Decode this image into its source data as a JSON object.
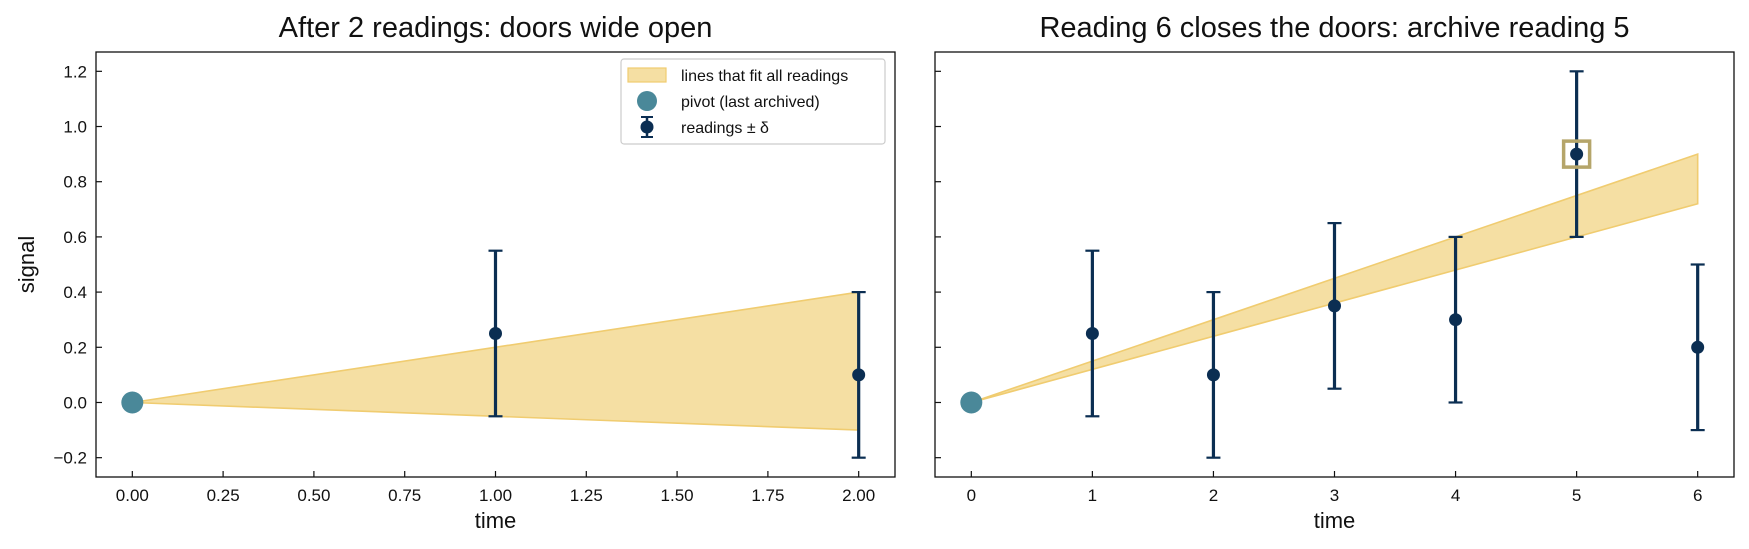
{
  "colors": {
    "band_fill": "#f5dfa3",
    "band_edge": "#f0cc70",
    "readings": "#0b2e52",
    "pivot": "#4a8899",
    "highlight": "#b5a56a",
    "axis": "#111111",
    "background": "#ffffff"
  },
  "chart_data": [
    {
      "type": "scatter",
      "title": "After 2 readings: doors wide open",
      "xlabel": "time",
      "ylabel": "signal",
      "xlim": [
        -0.1,
        2.1
      ],
      "ylim": [
        -0.27,
        1.27
      ],
      "xticks": [
        0.0,
        0.25,
        0.5,
        0.75,
        1.0,
        1.25,
        1.5,
        1.75,
        2.0
      ],
      "xtick_labels": [
        "0.00",
        "0.25",
        "0.50",
        "0.75",
        "1.00",
        "1.25",
        "1.50",
        "1.75",
        "2.00"
      ],
      "yticks": [
        -0.2,
        0.0,
        0.2,
        0.4,
        0.6,
        0.8,
        1.0,
        1.2
      ],
      "ytick_labels": [
        "−0.2",
        "0.0",
        "0.2",
        "0.4",
        "0.6",
        "0.8",
        "1.0",
        "1.2"
      ],
      "show_ytick_labels": true,
      "grid": false,
      "legend_position": "upper-right",
      "legend": [
        {
          "kind": "band",
          "label": "lines that fit all readings"
        },
        {
          "kind": "pivot",
          "label": "pivot (last archived)"
        },
        {
          "kind": "readings",
          "label": "readings ± δ"
        }
      ],
      "band": {
        "x": [
          0,
          2
        ],
        "upper": [
          0,
          0.4
        ],
        "lower": [
          0,
          -0.1
        ]
      },
      "pivot": {
        "x": 0,
        "y": 0
      },
      "readings": {
        "x": [
          1,
          2
        ],
        "y": [
          0.25,
          0.1
        ],
        "delta": 0.3
      },
      "highlight": null
    },
    {
      "type": "scatter",
      "title": "Reading 6 closes the doors: archive reading 5",
      "xlabel": "time",
      "ylabel": "",
      "xlim": [
        -0.3,
        6.3
      ],
      "ylim": [
        -0.27,
        1.27
      ],
      "xticks": [
        0,
        1,
        2,
        3,
        4,
        5,
        6
      ],
      "xtick_labels": [
        "0",
        "1",
        "2",
        "3",
        "4",
        "5",
        "6"
      ],
      "yticks": [
        -0.2,
        0.0,
        0.2,
        0.4,
        0.6,
        0.8,
        1.0,
        1.2
      ],
      "ytick_labels": [],
      "show_ytick_labels": false,
      "grid": false,
      "legend": [],
      "band": {
        "x": [
          0,
          6
        ],
        "upper": [
          0,
          0.9
        ],
        "lower": [
          0,
          0.72
        ]
      },
      "pivot": {
        "x": 0,
        "y": 0
      },
      "readings": {
        "x": [
          1,
          2,
          3,
          4,
          5,
          6
        ],
        "y": [
          0.25,
          0.1,
          0.35,
          0.3,
          0.9,
          0.2
        ],
        "delta": 0.3
      },
      "highlight": {
        "x": 5,
        "y": 0.9
      }
    }
  ]
}
